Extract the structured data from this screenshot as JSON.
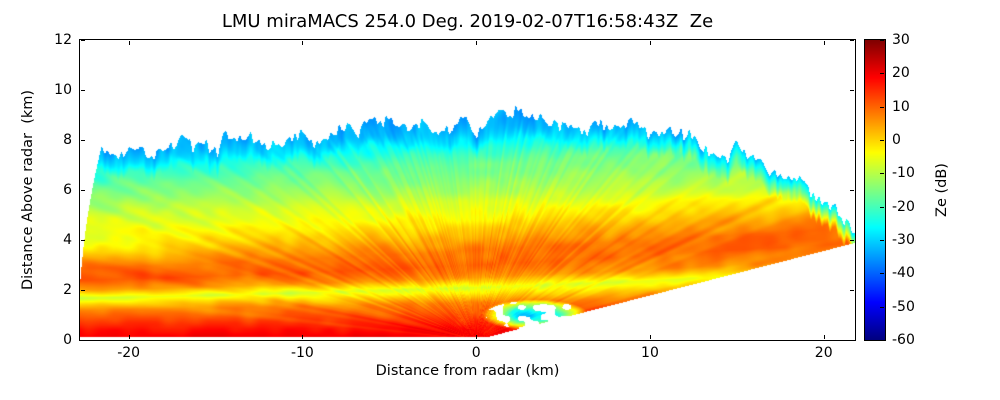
{
  "figure": {
    "background": "#ffffff",
    "frame_color": "#000000",
    "text_color": "#000000"
  },
  "chart_data": {
    "type": "heatmap",
    "title": "LMU miraMACS 254.0 Deg. 2019-02-07T16:58:43Z  Ze",
    "xlabel": "Distance from radar (km)",
    "ylabel": "Distance Above radar  (km)",
    "colorbar_label": "Ze (dB)",
    "colormap": "jet",
    "xlim": [
      -22.8,
      21.8
    ],
    "ylim": [
      0,
      12
    ],
    "value_range_db": [
      -60,
      30
    ],
    "x_ticks": [
      -20,
      -10,
      0,
      10,
      20
    ],
    "y_ticks": [
      0,
      2,
      4,
      6,
      8,
      10,
      12
    ],
    "colorbar_ticks": [
      30,
      20,
      10,
      0,
      -10,
      -20,
      -30,
      -40,
      -50,
      -60
    ],
    "grid": {
      "units": "dBZe",
      "x_km": [
        -22,
        -18,
        -14,
        -10,
        -6,
        -2,
        2,
        6,
        10,
        14,
        18,
        22
      ],
      "z_km": [
        0.25,
        0.75,
        1.25,
        2.0,
        2.75,
        3.5,
        4.25,
        5.0,
        6.0,
        7.0,
        8.0,
        9.0
      ],
      "values_db": [
        [
          19,
          19,
          19,
          19,
          20,
          20,
          null,
          null,
          null,
          null,
          null,
          null
        ],
        [
          14,
          14,
          14,
          15,
          15,
          16,
          -27,
          -24,
          null,
          null,
          null,
          null
        ],
        [
          7,
          8,
          9,
          9,
          10,
          11,
          -26,
          -15,
          null,
          null,
          null,
          null
        ],
        [
          5,
          3,
          0,
          -2,
          -4,
          -4,
          -2,
          1,
          3,
          null,
          null,
          null
        ],
        [
          9,
          10,
          10,
          10,
          9,
          8,
          7,
          6,
          4,
          2,
          null,
          null
        ],
        [
          1,
          3,
          4,
          6,
          8,
          9,
          9,
          10,
          10,
          9,
          8,
          null
        ],
        [
          -6,
          -4,
          -3,
          -2,
          0,
          2,
          3,
          5,
          7,
          8,
          9,
          9
        ],
        [
          -10,
          -9,
          -8,
          -8,
          -7,
          -5,
          -4,
          -3,
          -1,
          1,
          2,
          4
        ],
        [
          -16,
          -16,
          -15,
          -14,
          -12,
          -11,
          -11,
          -10,
          -9,
          -8,
          -7,
          null
        ],
        [
          -26,
          -24,
          -23,
          -21,
          -19,
          -18,
          -17,
          -15,
          -14,
          -13,
          null,
          null
        ],
        [
          null,
          null,
          null,
          -32,
          -30,
          -29,
          -28,
          -25,
          -24,
          null,
          null,
          null
        ],
        [
          null,
          null,
          null,
          null,
          null,
          -38,
          -36,
          null,
          null,
          null,
          null,
          null
        ]
      ]
    },
    "render_model": {
      "xlim": [
        -22.8,
        21.8
      ],
      "ylim": [
        0,
        12
      ],
      "vlim": [
        -60,
        30
      ],
      "max_range_km": 22.9,
      "min_height_km": 0.12,
      "right_boundary_slope": 0.178,
      "tilt_per_km": 0.04,
      "tilt_full_height_km": 3.5,
      "profile_db_vs_height": [
        [
          0,
          20
        ],
        [
          0.5,
          18
        ],
        [
          1.0,
          13
        ],
        [
          1.5,
          8
        ],
        [
          1.8,
          2
        ],
        [
          2.1,
          -5
        ],
        [
          2.5,
          5
        ],
        [
          3.0,
          10
        ],
        [
          3.6,
          9
        ],
        [
          4.2,
          3
        ],
        [
          4.8,
          -3
        ],
        [
          5.4,
          -8
        ],
        [
          6.2,
          -12
        ],
        [
          7.0,
          -17
        ],
        [
          7.6,
          -23
        ],
        [
          8.2,
          -30
        ],
        [
          9.0,
          -38
        ],
        [
          10.5,
          -46
        ],
        [
          12,
          -52
        ]
      ],
      "echo_top_km": [
        [
          -22.8,
          7.2
        ],
        [
          -16,
          7.8
        ],
        [
          -8,
          8.3
        ],
        [
          -2,
          8.7
        ],
        [
          4,
          8.9
        ],
        [
          8,
          8.5
        ],
        [
          12,
          8.0
        ],
        [
          16,
          7.3
        ],
        [
          18.5,
          6.4
        ],
        [
          20.5,
          5.3
        ],
        [
          22.5,
          4.1
        ]
      ],
      "top_jag_amp": 0.45,
      "top_jag_freq": 1.6,
      "top_fringe_depth": 0.9,
      "top_fringe_value": -33,
      "patch": {
        "cx": 3.4,
        "cz": 1.0,
        "rx": 3.1,
        "rz": 0.62,
        "value": -28,
        "hole_threshold": 0.62
      },
      "noise": {
        "streak_amp": 2.2,
        "band_amp": 1.8,
        "grain_amp": 1.6
      }
    }
  }
}
